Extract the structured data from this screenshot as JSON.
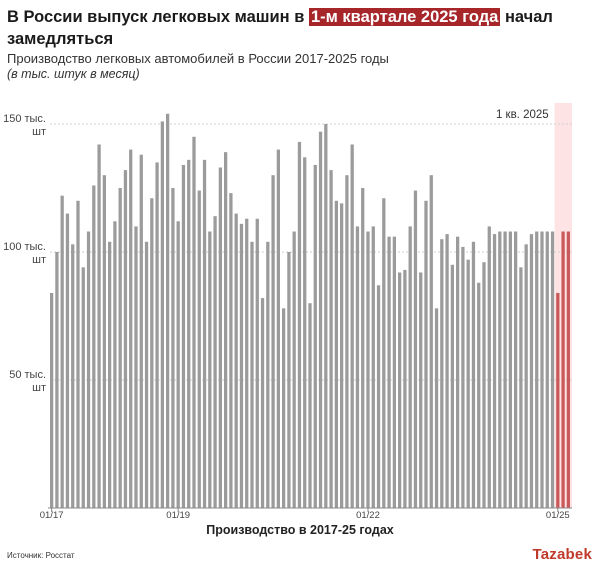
{
  "title": {
    "before": "В России выпуск легковых машин в ",
    "highlight": "1-м квартале 2025 года",
    "after": " начал замедляться"
  },
  "subtitle": "Производство легковых автомобилей в России 2017-2025 годы",
  "note": "(в тыс. штук в месяц)",
  "source": "Источник: Росстат",
  "logo": "Tazabek",
  "colors": {
    "bar": "#9b9b9b",
    "highlight_bar": "#c9595a",
    "highlight_band": "#fde3e3",
    "title_highlight": "#a6262a"
  },
  "chart_data": {
    "type": "bar",
    "xlabel": "Производство в 2017-25 годах",
    "ylabel": "",
    "ylim": [
      0,
      165
    ],
    "gridlines": true,
    "y_ticks": [
      {
        "value": 50,
        "line1": "50 тыс.",
        "line2": "шт"
      },
      {
        "value": 100,
        "line1": "100 тыс.",
        "line2": "шт"
      },
      {
        "value": 150,
        "line1": "150 тыс.",
        "line2": "шт"
      }
    ],
    "x_ticks": [
      {
        "index": 0,
        "label": "01/17"
      },
      {
        "index": 24,
        "label": "01/19"
      },
      {
        "index": 60,
        "label": "01/22"
      },
      {
        "index": 96,
        "label": "01/25"
      }
    ],
    "highlight": {
      "start_index": 96,
      "end_index": 98,
      "label": "1 кв. 2025"
    },
    "values": [
      84,
      100,
      122,
      115,
      103,
      120,
      94,
      108,
      126,
      142,
      130,
      104,
      112,
      125,
      132,
      140,
      110,
      138,
      104,
      121,
      135,
      151,
      154,
      125,
      112,
      134,
      136,
      145,
      124,
      136,
      108,
      114,
      133,
      139,
      123,
      115,
      111,
      113,
      104,
      113,
      82,
      104,
      130,
      140,
      78,
      100,
      108,
      143,
      137,
      80,
      134,
      147,
      150,
      132,
      120,
      119,
      130,
      142,
      110,
      125,
      108,
      110,
      87,
      121,
      106,
      106,
      92,
      93,
      110,
      124,
      92,
      120,
      130,
      78,
      105,
      107,
      95,
      106,
      102,
      97,
      104,
      88,
      96,
      110,
      107,
      108,
      108,
      108,
      108,
      94,
      103,
      107,
      108,
      108,
      108,
      108,
      84,
      108,
      108
    ]
  }
}
